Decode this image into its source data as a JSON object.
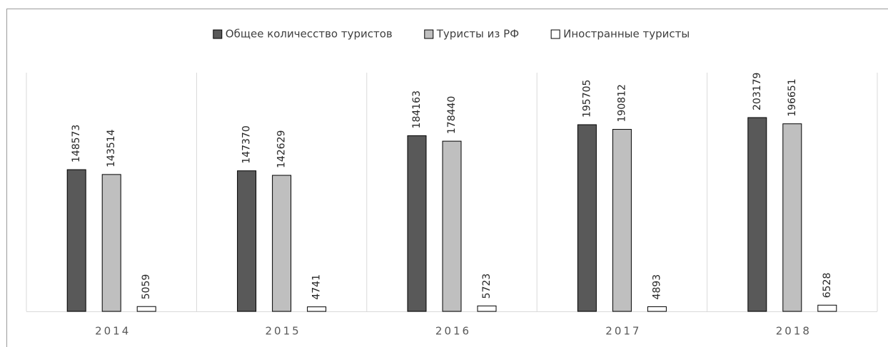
{
  "chart_data": {
    "type": "bar",
    "categories": [
      "2014",
      "2015",
      "2016",
      "2017",
      "2018"
    ],
    "series": [
      {
        "name": "Общее количесство туристов",
        "color": "#595959",
        "values": [
          148573,
          147370,
          184163,
          195705,
          203179
        ]
      },
      {
        "name": "Туристы из РФ",
        "color": "#bfbfbf",
        "values": [
          143514,
          142629,
          178440,
          190812,
          196651
        ]
      },
      {
        "name": "Иностранные туристы",
        "color": "#ffffff",
        "values": [
          5059,
          4741,
          5723,
          4893,
          6528
        ]
      }
    ],
    "legend": "top"
  }
}
